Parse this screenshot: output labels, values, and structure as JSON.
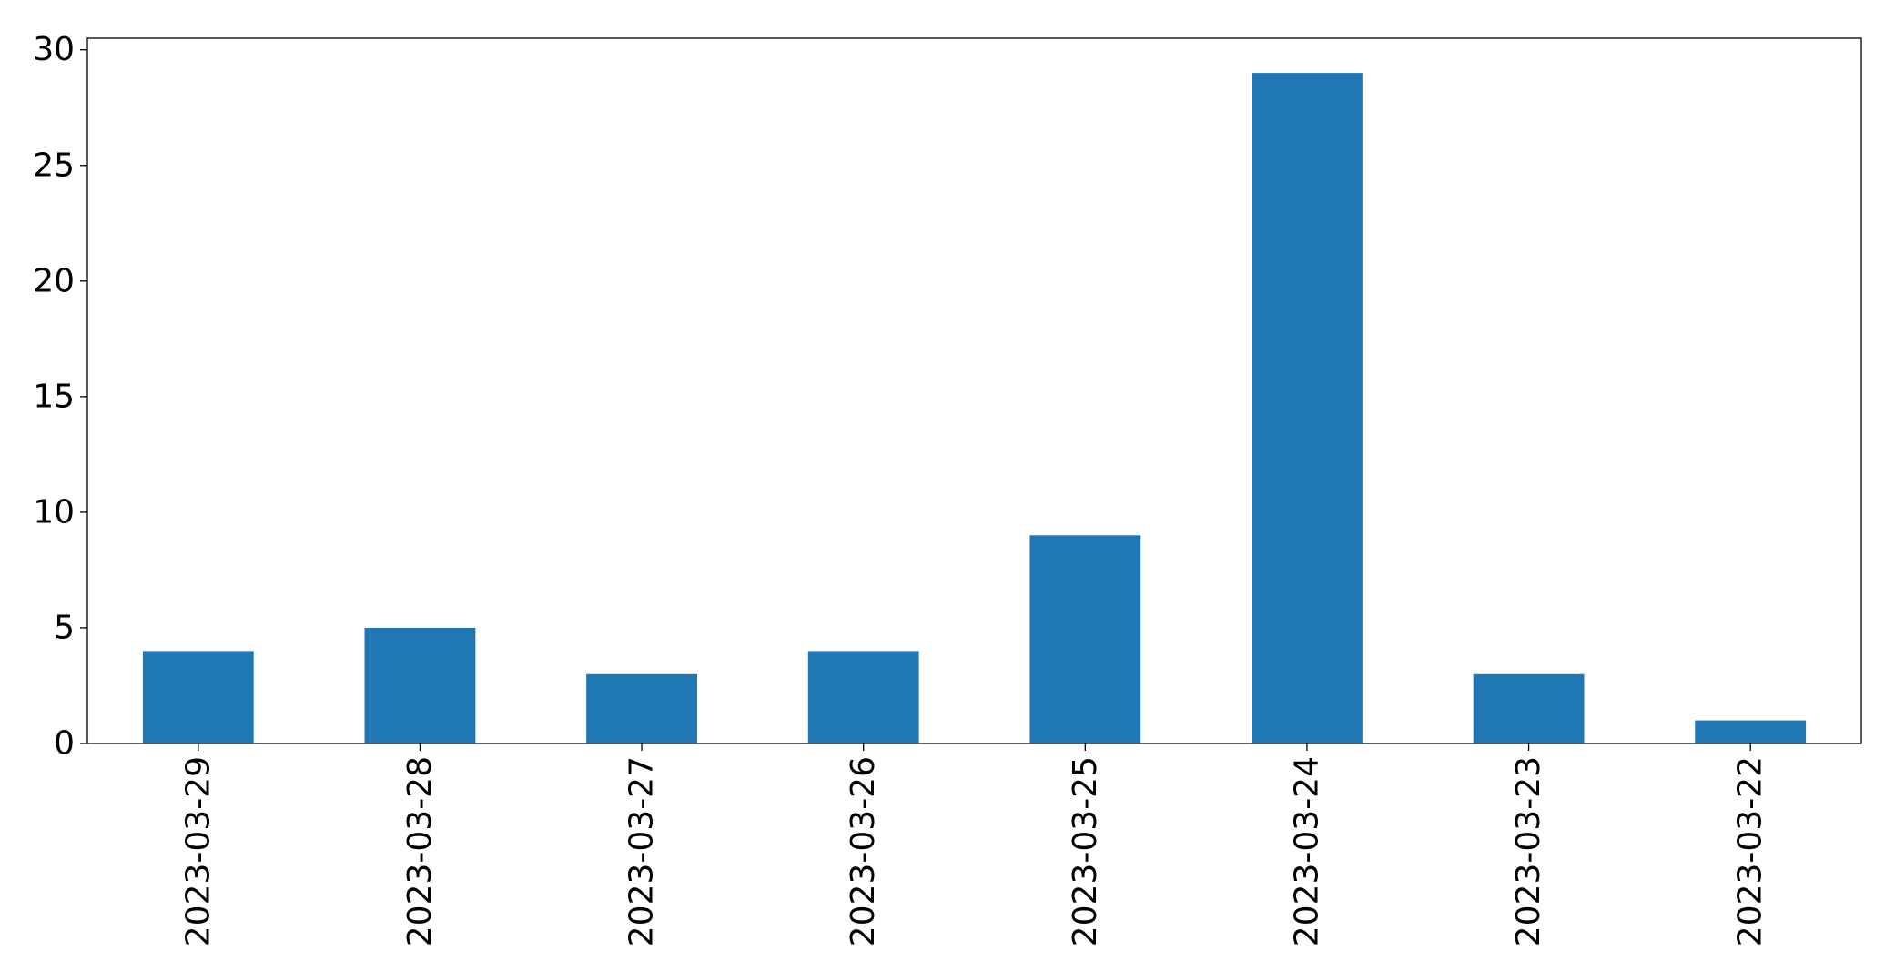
{
  "chart_data": {
    "type": "bar",
    "title": "",
    "xlabel": "",
    "ylabel": "",
    "categories": [
      "2023-03-29",
      "2023-03-28",
      "2023-03-27",
      "2023-03-26",
      "2023-03-25",
      "2023-03-24",
      "2023-03-23",
      "2023-03-22"
    ],
    "values": [
      4,
      5,
      3,
      4,
      9,
      29,
      3,
      1
    ],
    "ylim": [
      0,
      30.5
    ],
    "yticks": [
      0,
      5,
      10,
      15,
      20,
      25,
      30
    ],
    "grid": false,
    "legend": "none",
    "bar_color": "#1f77b4"
  }
}
